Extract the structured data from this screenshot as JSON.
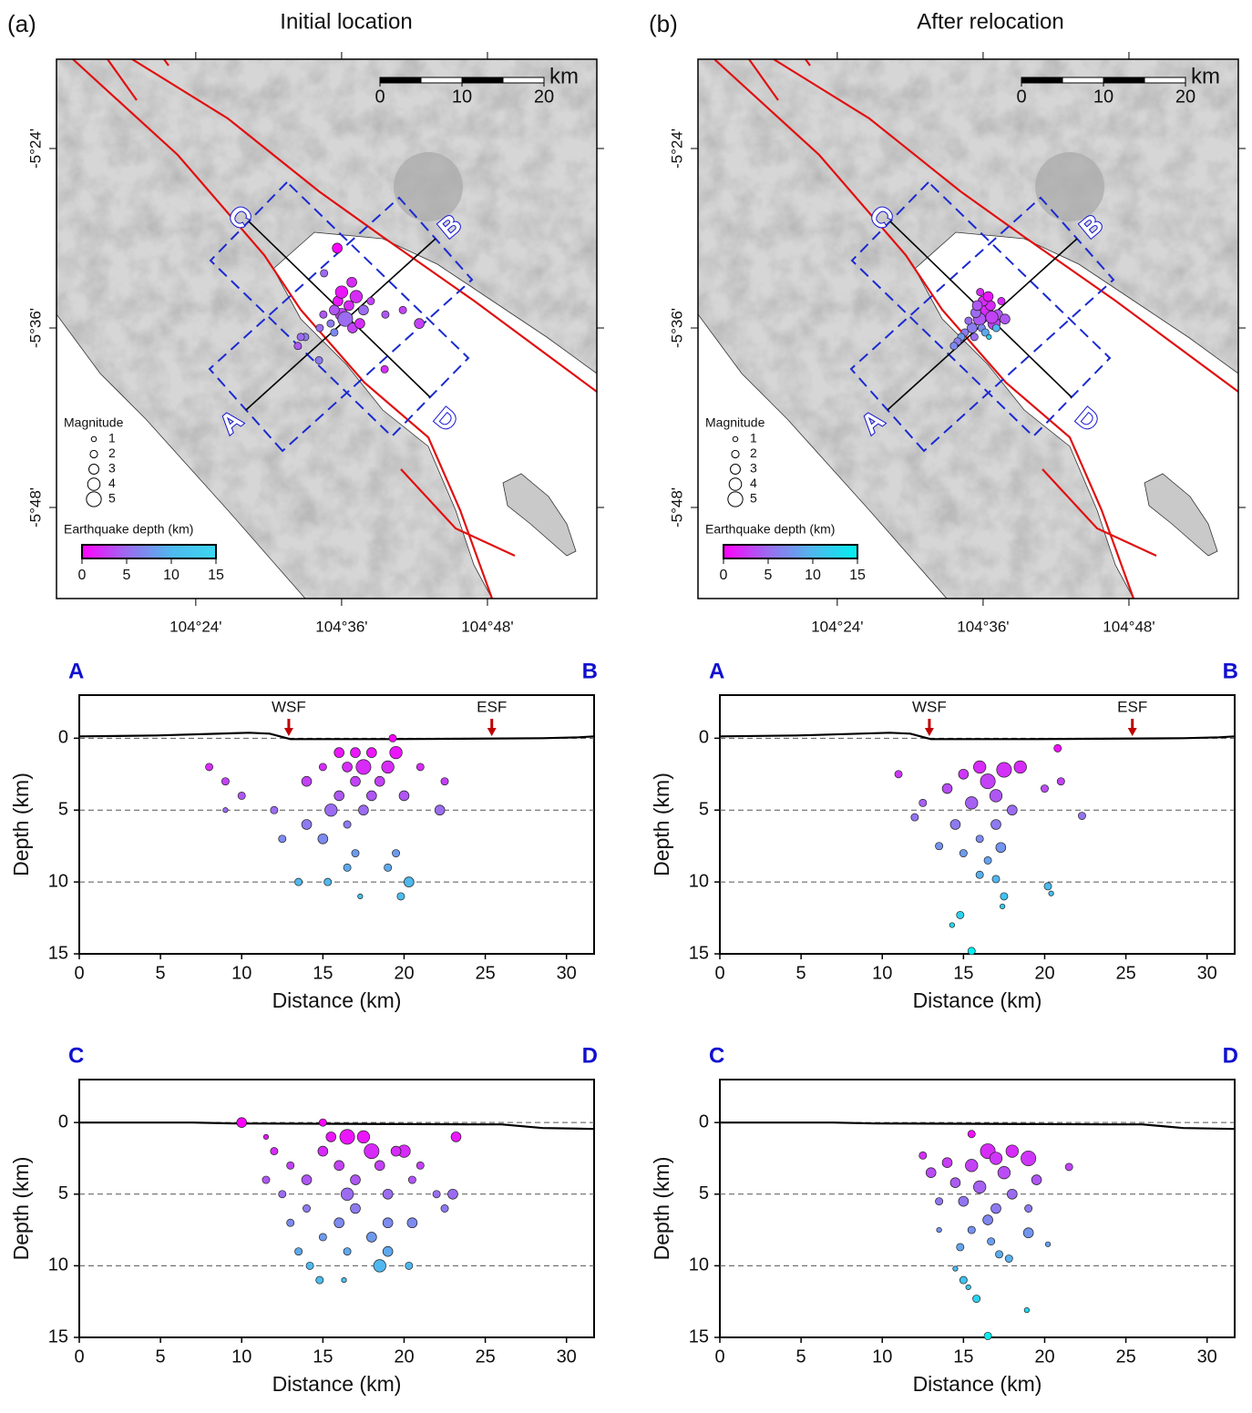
{
  "chart_data": [
    {
      "type": "map",
      "panel_label": "(a)",
      "title": "Initial location",
      "xlim": [
        104.209,
        104.95
      ],
      "ylim": [
        -5.9015,
        -5.3005
      ],
      "xticks": [
        {
          "value": 104.4,
          "label": "104°24'"
        },
        {
          "value": 104.6,
          "label": "104°36'"
        },
        {
          "value": 104.8,
          "label": "104°48'"
        }
      ],
      "yticks": [
        {
          "value": -5.4,
          "label": "-5°24'"
        },
        {
          "value": -5.6,
          "label": "-5°36'"
        },
        {
          "value": -5.8,
          "label": "-5°48'"
        }
      ],
      "profile_labels": [
        "A",
        "B",
        "C",
        "D"
      ],
      "scale_bar": {
        "ticks": [
          0,
          10,
          20
        ],
        "unit": "km"
      },
      "magnitude_legend": {
        "title": "Magnitude",
        "values": [
          1,
          2,
          3,
          4,
          5
        ]
      },
      "colorbar": {
        "label": "Earthquake depth (km)",
        "range": [
          0,
          15
        ],
        "ticks": [
          0,
          5,
          10,
          15
        ],
        "colors": [
          "#ff00ff",
          "#9b6cf0",
          "#4fb8ee",
          "#3ad8f0"
        ]
      },
      "events": {
        "lon": [
          104.6,
          104.61,
          104.59,
          104.605,
          104.595,
          104.62,
          104.585,
          104.615,
          104.575,
          104.63,
          104.6,
          104.59,
          104.625,
          104.57,
          104.64,
          104.55,
          104.66,
          104.594,
          104.7065,
          104.544,
          104.659,
          104.569,
          104.54,
          104.684,
          104.576,
          104.614
        ],
        "lat": [
          -5.585,
          -5.575,
          -5.58,
          -5.59,
          -5.57,
          -5.565,
          -5.595,
          -5.6,
          -5.585,
          -5.58,
          -5.56,
          -5.605,
          -5.595,
          -5.6,
          -5.57,
          -5.61,
          -5.585,
          -5.511,
          -5.595,
          -5.61,
          -5.646,
          -5.636,
          -5.62,
          -5.58,
          -5.539,
          -5.549
        ],
        "depth": [
          3,
          2,
          4,
          5,
          1,
          2,
          6,
          3,
          4,
          5,
          1,
          7,
          2,
          5,
          3,
          6,
          4,
          0,
          3,
          5,
          2,
          6,
          4,
          3,
          5,
          2
        ],
        "magnitude": [
          4,
          3,
          3,
          5,
          3,
          4,
          2,
          3,
          2,
          3,
          4,
          2,
          3,
          2,
          2,
          2,
          2,
          3,
          3,
          2,
          2,
          2,
          2,
          2,
          2,
          3
        ]
      }
    },
    {
      "type": "map",
      "panel_label": "(b)",
      "title": "After relocation",
      "xlim": [
        104.209,
        104.95
      ],
      "ylim": [
        -5.9015,
        -5.3005
      ],
      "xticks": [
        {
          "value": 104.4,
          "label": "104°24'"
        },
        {
          "value": 104.6,
          "label": "104°36'"
        },
        {
          "value": 104.8,
          "label": "104°48'"
        }
      ],
      "yticks": [
        {
          "value": -5.4,
          "label": "-5°24'"
        },
        {
          "value": -5.6,
          "label": "-5°36'"
        },
        {
          "value": -5.8,
          "label": "-5°48'"
        }
      ],
      "profile_labels": [
        "A",
        "B",
        "C",
        "D"
      ],
      "scale_bar": {
        "ticks": [
          0,
          10,
          20
        ],
        "unit": "km"
      },
      "magnitude_legend": {
        "title": "Magnitude",
        "values": [
          1,
          2,
          3,
          4,
          5
        ]
      },
      "colorbar": {
        "label": "Earthquake depth (km)",
        "range": [
          0,
          15
        ],
        "ticks": [
          0,
          5,
          10,
          15
        ],
        "colors": [
          "#ff00ff",
          "#9b6cf0",
          "#4fb8ee",
          "#00f0f0"
        ]
      },
      "events": {
        "lon": [
          104.6,
          104.605,
          104.595,
          104.61,
          104.59,
          104.615,
          104.6,
          104.585,
          104.62,
          104.598,
          104.607,
          104.58,
          104.575,
          104.57,
          104.612,
          104.592,
          104.625,
          104.603,
          104.588,
          104.565,
          104.56,
          104.618,
          104.63,
          104.596,
          104.608
        ],
        "lat": [
          -5.585,
          -5.58,
          -5.59,
          -5.575,
          -5.583,
          -5.595,
          -5.57,
          -5.6,
          -5.585,
          -5.6,
          -5.565,
          -5.592,
          -5.605,
          -5.61,
          -5.588,
          -5.575,
          -5.57,
          -5.605,
          -5.61,
          -5.615,
          -5.62,
          -5.6,
          -5.59,
          -5.56,
          -5.61
        ],
        "depth": [
          3,
          2,
          4,
          2,
          5,
          3,
          2,
          6,
          4,
          7,
          1,
          5,
          6,
          8,
          3,
          4,
          2,
          9,
          5,
          6,
          7,
          10,
          4,
          2,
          12
        ],
        "magnitude": [
          5,
          4,
          4,
          3,
          3,
          4,
          3,
          3,
          3,
          2,
          3,
          2,
          2,
          2,
          4,
          3,
          2,
          2,
          2,
          2,
          2,
          2,
          3,
          2,
          1
        ]
      }
    },
    {
      "type": "scatter",
      "left_label": "A",
      "right_label": "B",
      "xlabel": "Distance (km)",
      "ylabel": "Depth (km)",
      "xlim": [
        0,
        31.7
      ],
      "ylim": [
        15,
        -3
      ],
      "xticks": [
        0,
        5,
        10,
        15,
        20,
        25,
        30
      ],
      "yticks": [
        0,
        5,
        10,
        15
      ],
      "faults": [
        {
          "label": "WSF",
          "x": 12.9
        },
        {
          "label": "ESF",
          "x": 25.4
        }
      ],
      "colorbar_ref": {
        "range": [
          0,
          15
        ],
        "colors": [
          "#ff00ff",
          "#9b6cf0",
          "#4fb8ee",
          "#3ad8f0"
        ]
      },
      "x": [
        19.3,
        16,
        17,
        18,
        19.5,
        17.5,
        16.5,
        19,
        15,
        8,
        21,
        22.5,
        9,
        14,
        17,
        18.5,
        16,
        18,
        20,
        10,
        12,
        15.5,
        17.5,
        22.2,
        9,
        14,
        16.5,
        12.5,
        15,
        17,
        19.5,
        16.5,
        13.5,
        15.3,
        20.3,
        19,
        17.3,
        19.8
      ],
      "depth": [
        0,
        1,
        1,
        1,
        1,
        2,
        2,
        2,
        2,
        2,
        2,
        3,
        3,
        3,
        3,
        3,
        4,
        4,
        4,
        4,
        5,
        5,
        5,
        5,
        5,
        6,
        6,
        7,
        7,
        8,
        8,
        9,
        10,
        10,
        10,
        9,
        11,
        11
      ],
      "magnitude": [
        2,
        3,
        3,
        3,
        4,
        5,
        3,
        4,
        2,
        2,
        2,
        2,
        2,
        3,
        3,
        3,
        3,
        3,
        3,
        2,
        2,
        4,
        3,
        3,
        1,
        3,
        2,
        2,
        3,
        2,
        2,
        2,
        2,
        2,
        3,
        2,
        1,
        2
      ]
    },
    {
      "type": "scatter",
      "left_label": "A",
      "right_label": "B",
      "xlabel": "Distance (km)",
      "ylabel": "Depth (km)",
      "xlim": [
        0,
        31.7
      ],
      "ylim": [
        15,
        -3
      ],
      "xticks": [
        0,
        5,
        10,
        15,
        20,
        25,
        30
      ],
      "yticks": [
        0,
        5,
        10,
        15
      ],
      "faults": [
        {
          "label": "WSF",
          "x": 12.9
        },
        {
          "label": "ESF",
          "x": 25.4
        }
      ],
      "colorbar_ref": {
        "range": [
          0,
          15
        ],
        "colors": [
          "#ff00ff",
          "#9b6cf0",
          "#4fb8ee",
          "#00f0f0"
        ]
      },
      "x": [
        20.8,
        16,
        17.5,
        18.5,
        16.5,
        15,
        14,
        12.5,
        12,
        11,
        15.5,
        17,
        18,
        20,
        21,
        22.3,
        14.5,
        17,
        16,
        15,
        17.3,
        13.5,
        16.5,
        16,
        17,
        20.2,
        20.4,
        17.5,
        17.4,
        14.8,
        14.3,
        15.5
      ],
      "depth": [
        0.7,
        2,
        2.2,
        2,
        3,
        2.5,
        3.5,
        4.5,
        5.5,
        2.5,
        4.5,
        4,
        5,
        3.5,
        3,
        5.4,
        6,
        6,
        7,
        8,
        7.6,
        7.5,
        8.5,
        9.5,
        9.8,
        10.3,
        10.8,
        11,
        11.7,
        12.3,
        13,
        14.8
      ],
      "magnitude": [
        2,
        4,
        5,
        4,
        5,
        3,
        3,
        2,
        2,
        2,
        4,
        4,
        3,
        2,
        2,
        2,
        3,
        3,
        2,
        2,
        3,
        2,
        2,
        2,
        2,
        2,
        1,
        2,
        1,
        2,
        1,
        2
      ]
    },
    {
      "type": "scatter",
      "left_label": "C",
      "right_label": "D",
      "xlabel": "Distance (km)",
      "ylabel": "Depth (km)",
      "xlim": [
        0,
        31.7
      ],
      "ylim": [
        15,
        -3
      ],
      "xticks": [
        0,
        5,
        10,
        15,
        20,
        25,
        30
      ],
      "yticks": [
        0,
        5,
        10,
        15
      ],
      "colorbar_ref": {
        "range": [
          0,
          15
        ],
        "colors": [
          "#ff00ff",
          "#9b6cf0",
          "#4fb8ee",
          "#3ad8f0"
        ]
      },
      "x": [
        10,
        15,
        16.5,
        15.5,
        17.5,
        11.5,
        23.2,
        18,
        20,
        19.5,
        15,
        12,
        13,
        16,
        18.5,
        21,
        11.5,
        14,
        17,
        20.5,
        12.5,
        16.5,
        19,
        23,
        22,
        14,
        17,
        22.5,
        13,
        16,
        19,
        20.5,
        15,
        18,
        13.5,
        16.5,
        19,
        14.2,
        18.5,
        20.3,
        14.8,
        16.3
      ],
      "depth": [
        0,
        0,
        1,
        1,
        1,
        1,
        1,
        2,
        2,
        2,
        2,
        2,
        3,
        3,
        3,
        3,
        4,
        4,
        4,
        4,
        5,
        5,
        5,
        5,
        5,
        6,
        6,
        6,
        7,
        7,
        7,
        7,
        8,
        8,
        9,
        9,
        9,
        10,
        10,
        10,
        11,
        11
      ],
      "magnitude": [
        3,
        2,
        5,
        3,
        4,
        1,
        3,
        5,
        4,
        3,
        3,
        2,
        2,
        3,
        3,
        2,
        2,
        3,
        3,
        2,
        2,
        4,
        3,
        3,
        2,
        2,
        3,
        2,
        2,
        3,
        3,
        3,
        2,
        3,
        2,
        2,
        3,
        2,
        4,
        2,
        2,
        1
      ]
    },
    {
      "type": "scatter",
      "left_label": "C",
      "right_label": "D",
      "xlabel": "Distance (km)",
      "ylabel": "Depth (km)",
      "xlim": [
        0,
        31.7
      ],
      "ylim": [
        15,
        -3
      ],
      "xticks": [
        0,
        5,
        10,
        15,
        20,
        25,
        30
      ],
      "yticks": [
        0,
        5,
        10,
        15
      ],
      "colorbar_ref": {
        "range": [
          0,
          15
        ],
        "colors": [
          "#ff00ff",
          "#9b6cf0",
          "#4fb8ee",
          "#00f0f0"
        ]
      },
      "x": [
        15.5,
        12.5,
        16.5,
        18,
        17,
        19,
        14,
        15.5,
        21.5,
        13,
        17.5,
        19.5,
        14.5,
        16,
        18,
        13.5,
        15,
        17,
        19,
        16.5,
        13.5,
        15.5,
        19,
        20.2,
        14.8,
        17.2,
        17.8,
        14.5,
        15,
        15.3,
        15.8,
        18.9,
        16.5,
        16.7
      ],
      "depth": [
        0.8,
        2.3,
        2,
        2,
        2.5,
        2.5,
        2.8,
        3,
        3.1,
        3.5,
        3.5,
        4,
        4.2,
        4.5,
        5,
        5.5,
        5.5,
        6,
        6,
        6.8,
        7.5,
        7.5,
        7.7,
        8.5,
        8.7,
        9.2,
        9.5,
        10.2,
        11,
        11.5,
        12.3,
        13.1,
        14.9,
        8.3
      ],
      "magnitude": [
        2,
        2,
        5,
        4,
        4,
        5,
        3,
        4,
        2,
        3,
        4,
        3,
        3,
        4,
        3,
        2,
        3,
        3,
        2,
        3,
        1,
        2,
        3,
        1,
        2,
        2,
        2,
        1,
        2,
        1,
        2,
        1,
        2,
        2
      ]
    }
  ]
}
